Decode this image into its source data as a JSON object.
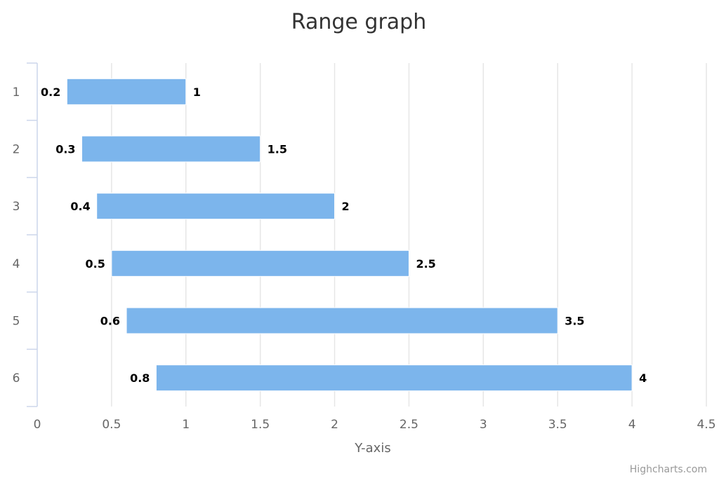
{
  "chart_data": {
    "type": "bar",
    "subtype": "columnrange",
    "orientation": "horizontal",
    "title": "Range graph",
    "categories": [
      "1",
      "2",
      "3",
      "4",
      "5",
      "6"
    ],
    "series": [
      {
        "low": [
          0.2,
          0.3,
          0.4,
          0.5,
          0.6,
          0.8
        ],
        "high": [
          1,
          1.5,
          2,
          2.5,
          3.5,
          4
        ],
        "low_labels": [
          "0.2",
          "0.3",
          "0.4",
          "0.5",
          "0.6",
          "0.8"
        ],
        "high_labels": [
          "1",
          "1.5",
          "2",
          "2.5",
          "3.5",
          "4"
        ]
      }
    ],
    "xlabel": "",
    "ylabel": "Y-axis",
    "ylim": [
      0,
      4.5
    ],
    "yticks": [
      "0",
      "0.5",
      "1",
      "1.5",
      "2",
      "2.5",
      "3",
      "3.5",
      "4",
      "4.5"
    ],
    "grid": true,
    "legend": "none",
    "bar_color": "#7cb5ec",
    "credits": "Highcharts.com"
  }
}
